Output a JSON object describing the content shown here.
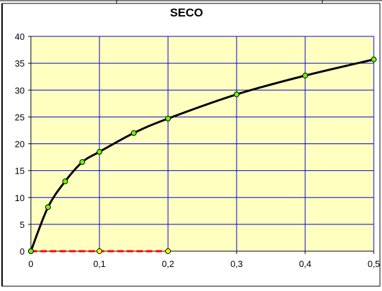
{
  "chart_data": {
    "type": "line",
    "title": "SECO",
    "xlim": [
      0,
      0.5
    ],
    "ylim": [
      0,
      40
    ],
    "x_ticks": [
      "0",
      "0,1",
      "0,2",
      "0,3",
      "0,4",
      "0,5"
    ],
    "y_ticks": [
      "0",
      "5",
      "10",
      "15",
      "20",
      "25",
      "30",
      "35",
      "40"
    ],
    "x_tick_values": [
      0,
      0.1,
      0.2,
      0.3,
      0.4,
      0.5
    ],
    "y_tick_values": [
      0,
      5,
      10,
      15,
      20,
      25,
      30,
      35,
      40
    ],
    "grid": true,
    "series": [
      {
        "color": "#000000",
        "marker_color": "#66ff00",
        "style": "solid",
        "x": [
          0,
          0.025,
          0.05,
          0.075,
          0.1,
          0.15,
          0.2,
          0.3,
          0.4,
          0.5
        ],
        "y": [
          0,
          8.2,
          13.0,
          16.6,
          18.5,
          22.0,
          24.7,
          29.2,
          32.7,
          35.7
        ]
      },
      {
        "color": "#ff0000",
        "marker_color": "#ffff00",
        "style": "dashed",
        "x": [
          0,
          0.1,
          0.2
        ],
        "y": [
          0,
          0,
          0
        ]
      }
    ],
    "colors": {
      "plot_background": "#ffffc0",
      "grid": "#0000cc",
      "outer_background": "#ffffff",
      "border": "#000000"
    }
  }
}
